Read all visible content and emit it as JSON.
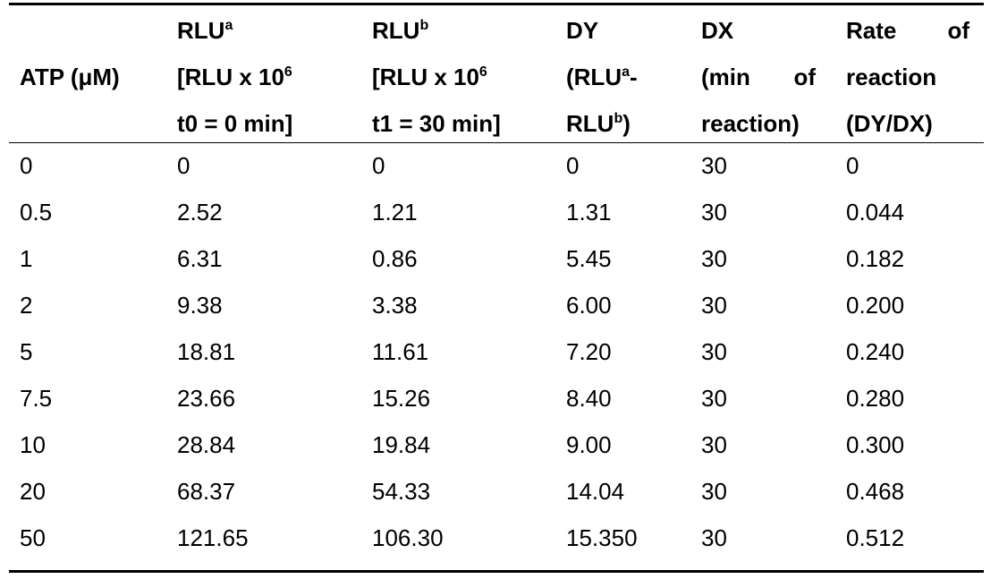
{
  "header": {
    "atp": "ATP (μM)",
    "rlu_a": {
      "base": "RLU",
      "sup": "a",
      "line2_base": "[RLU x 10",
      "line2_sup": "6",
      "line3": "t0 = 0 min]"
    },
    "rlu_b": {
      "base": "RLU",
      "sup": "b",
      "line2_base": "[RLU x 10",
      "line2_sup": "6",
      "line3": "t1 = 30 min]"
    },
    "dy": {
      "line1": "DY",
      "line2_base": "(RLU",
      "line2_sup": "a",
      "line2_tail": "-",
      "line3_base": "RLU",
      "line3_sup": "b",
      "line3_tail": ")"
    },
    "dx": {
      "line1": "DX",
      "line2_a": "(min",
      "line2_b": "of",
      "line3": "reaction)"
    },
    "rate": {
      "line1_a": "Rate",
      "line1_b": "of",
      "line2": "reaction",
      "line3": "(DY/DX)"
    }
  },
  "rows": [
    [
      "0",
      "0",
      "0",
      "0",
      "30",
      "0"
    ],
    [
      "0.5",
      "2.52",
      "1.21",
      "1.31",
      "30",
      "0.044"
    ],
    [
      "1",
      "6.31",
      "0.86",
      "5.45",
      "30",
      "0.182"
    ],
    [
      "2",
      "9.38",
      "3.38",
      "6.00",
      "30",
      "0.200"
    ],
    [
      "5",
      "18.81",
      "11.61",
      "7.20",
      "30",
      "0.240"
    ],
    [
      "7.5",
      "23.66",
      "15.26",
      "8.40",
      "30",
      "0.280"
    ],
    [
      "10",
      "28.84",
      "19.84",
      "9.00",
      "30",
      "0.300"
    ],
    [
      "20",
      "68.37",
      "54.33",
      "14.04",
      "30",
      "0.468"
    ],
    [
      "50",
      "121.65",
      "106.30",
      "15.350",
      "30",
      "0.512"
    ]
  ]
}
